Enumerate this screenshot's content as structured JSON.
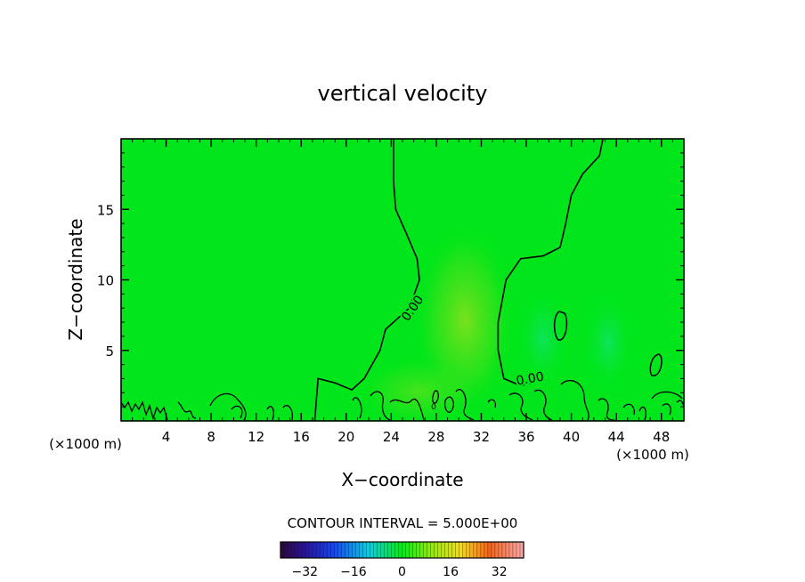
{
  "chart_data": {
    "type": "heatmap",
    "title": "vertical velocity",
    "xlabel": "X−coordinate",
    "ylabel": "Z−coordinate",
    "x_unit_left": "(×1000 m)",
    "x_unit_right": "(×1000 m)",
    "xlim": [
      0,
      50
    ],
    "ylim": [
      0,
      20
    ],
    "x_ticks": [
      4,
      8,
      12,
      16,
      20,
      24,
      28,
      32,
      36,
      40,
      44,
      48
    ],
    "y_ticks": [
      5,
      10,
      15
    ],
    "contour_interval_text": "CONTOUR INTERVAL = 5.000E+00",
    "contour_labels": [
      "0.00",
      "0.00",
      "0"
    ],
    "colorbar": {
      "min": -40,
      "max": 40,
      "ticks": [
        -32,
        -16,
        0,
        16,
        32
      ],
      "tick_labels": [
        "−32",
        "−16",
        "0",
        "16",
        "32"
      ]
    },
    "field_background_color": "#00e61a",
    "zero_contour": {
      "value": 0,
      "left_branch": [
        [
          24.2,
          20
        ],
        [
          24.2,
          17
        ],
        [
          24.4,
          15
        ],
        [
          25.5,
          13
        ],
        [
          26.3,
          11.5
        ],
        [
          26.5,
          10
        ],
        [
          25.6,
          8
        ],
        [
          23.5,
          6.5
        ],
        [
          23,
          5
        ],
        [
          21.6,
          3
        ],
        [
          20.5,
          2.2
        ],
        [
          19,
          2.7
        ],
        [
          17.5,
          3
        ],
        [
          17.2,
          0
        ]
      ],
      "right_branch": [
        [
          42.8,
          20
        ],
        [
          42.5,
          18.8
        ],
        [
          41,
          17.5
        ],
        [
          40,
          16
        ],
        [
          39.5,
          14
        ],
        [
          39,
          12.3
        ],
        [
          37.5,
          11.7
        ],
        [
          35.5,
          11.5
        ],
        [
          34.2,
          10
        ],
        [
          33.5,
          7
        ],
        [
          33.5,
          5
        ],
        [
          34,
          3
        ],
        [
          35.5,
          2.5
        ],
        [
          36.5,
          2.7
        ]
      ]
    }
  }
}
